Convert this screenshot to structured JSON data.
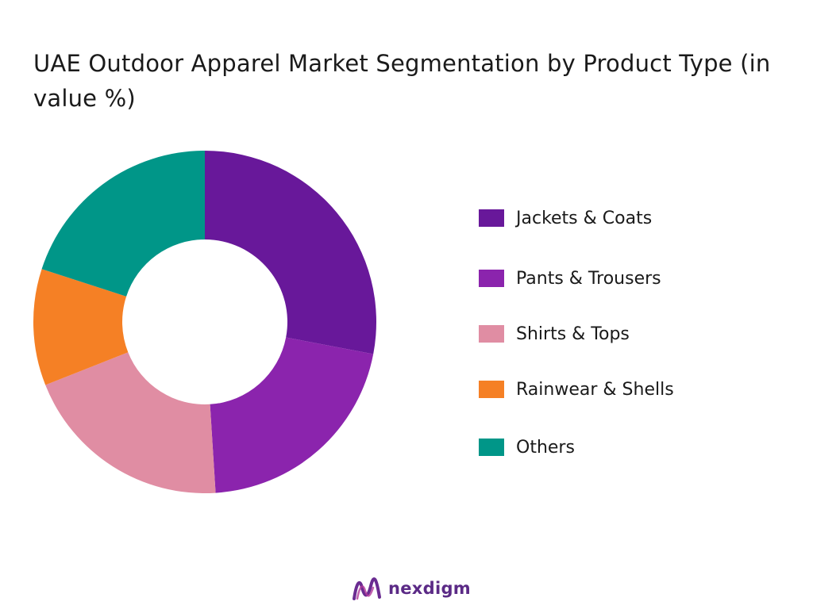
{
  "chart_data": {
    "type": "pie",
    "title": "UAE Outdoor Apparel Market Segmentation by Product Type (in value %)",
    "legend_position": "right",
    "categories": [
      "Jackets & Coats",
      "Pants & Trousers",
      "Shirts & Tops",
      "Rainwear & Shells",
      "Others"
    ],
    "values": [
      28,
      21,
      20,
      11,
      20
    ],
    "colors": [
      "#68189a",
      "#8b24ad",
      "#e08da3",
      "#f58025",
      "#009688"
    ]
  },
  "brand": {
    "name": "nexdigm",
    "color": "#5b2a86"
  }
}
